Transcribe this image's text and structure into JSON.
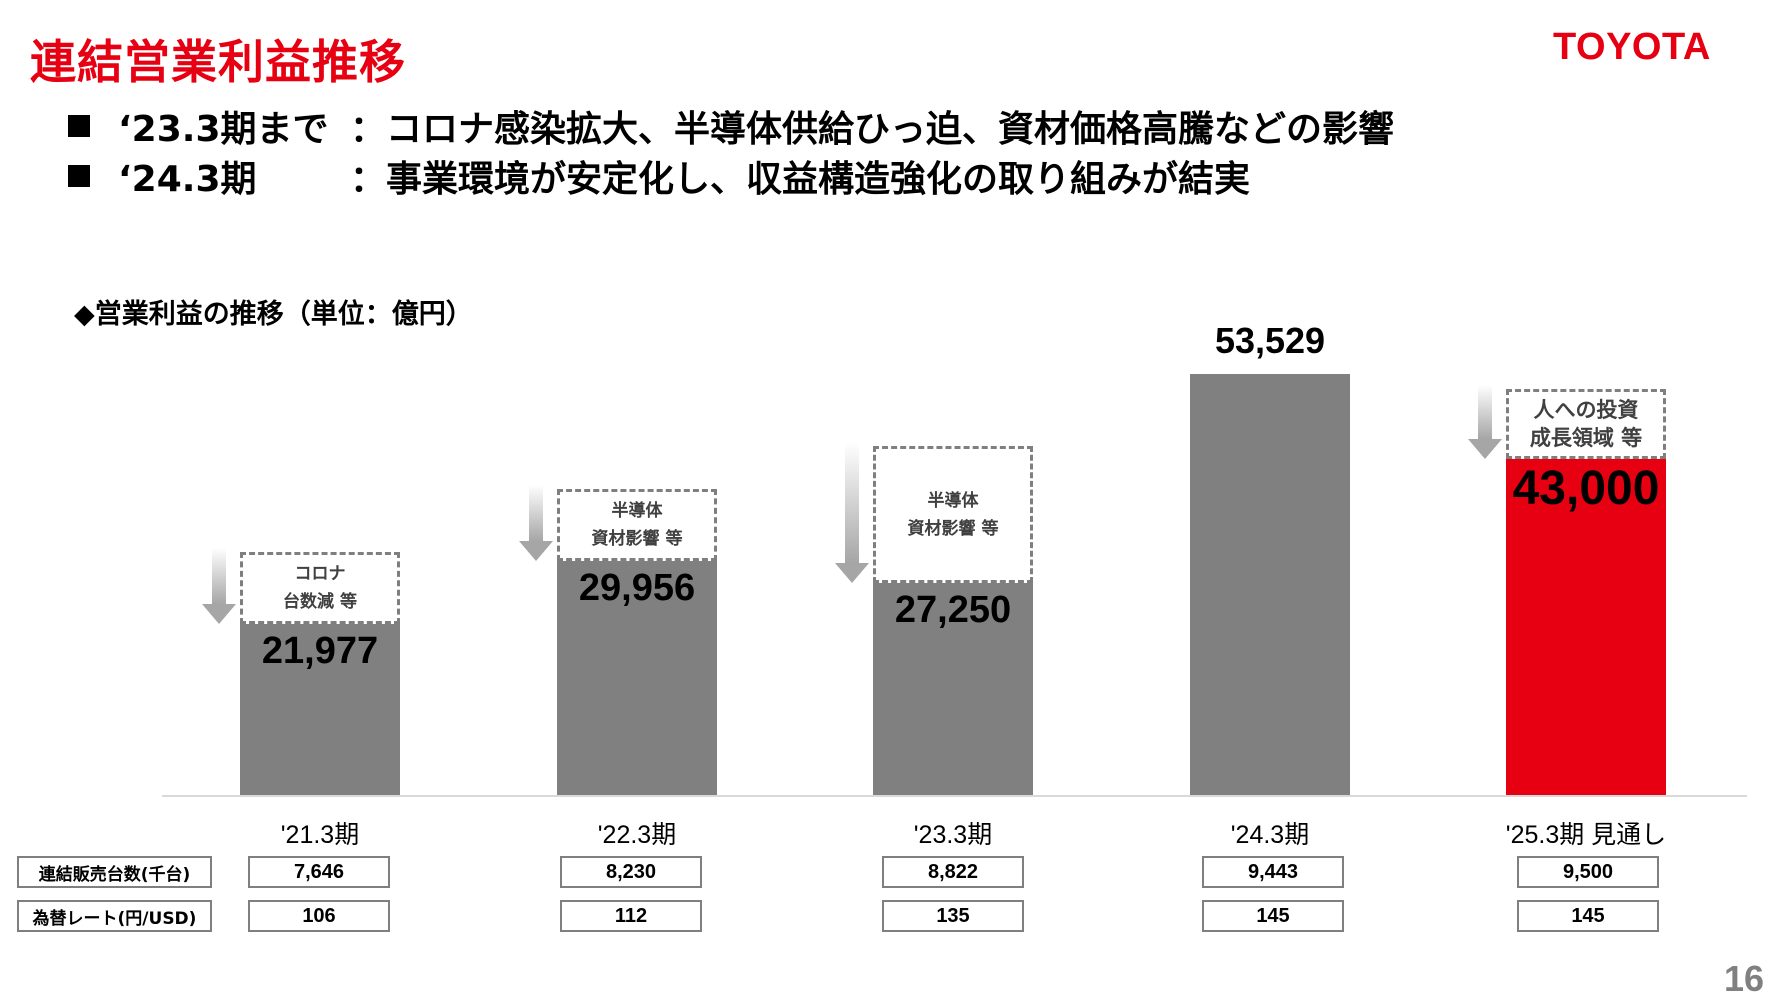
{
  "header": {
    "title": "連結営業利益推移",
    "logo": "TOYOTA"
  },
  "bullets": [
    {
      "period": "‘23.3期まで",
      "text": "：コロナ感染拡大、半導体供給ひっ迫、資材価格高騰などの影響"
    },
    {
      "period": "‘24.3期",
      "text": "：事業環境が安定化し、収益構造強化の取り組みが結実"
    }
  ],
  "chart_subtitle": "◆営業利益の推移（単位：億円）",
  "chart_data": {
    "type": "bar",
    "title": "営業利益の推移（単位：億円）",
    "categories": [
      "'21.3期",
      "'22.3期",
      "'23.3期",
      "'24.3期",
      "'25.3期 見通し"
    ],
    "values": [
      21977,
      29956,
      27250,
      53529,
      43000
    ],
    "value_labels": [
      "21,977",
      "29,956",
      "27,250",
      "53,529",
      "43,000"
    ],
    "forecast_index": 4,
    "colors": {
      "actual": "#808080",
      "forecast": "#e60012"
    },
    "annotations": [
      {
        "category": "'21.3期",
        "lines": [
          "コロナ",
          "台数減 等"
        ],
        "type": "decrease-arrow"
      },
      {
        "category": "'22.3期",
        "lines": [
          "半導体",
          "資材影響 等"
        ],
        "type": "decrease-arrow"
      },
      {
        "category": "'23.3期",
        "lines": [
          "半導体",
          "資材影響 等"
        ],
        "type": "decrease-arrow"
      },
      {
        "category": "'25.3期 見通し",
        "lines": [
          "人への投資",
          "成長領域 等"
        ],
        "type": "decrease-arrow"
      }
    ],
    "xlabel": "",
    "ylabel": "億円",
    "ylim": [
      0,
      53529
    ],
    "grid": false,
    "legend": "none"
  },
  "table": {
    "rows": [
      {
        "label": "連結販売台数(千台)",
        "values": [
          "7,646",
          "8,230",
          "8,822",
          "9,443",
          "9,500"
        ]
      },
      {
        "label": "為替レート(円/USD)",
        "values": [
          "106",
          "112",
          "135",
          "145",
          "145"
        ]
      }
    ]
  },
  "page_number": "16"
}
